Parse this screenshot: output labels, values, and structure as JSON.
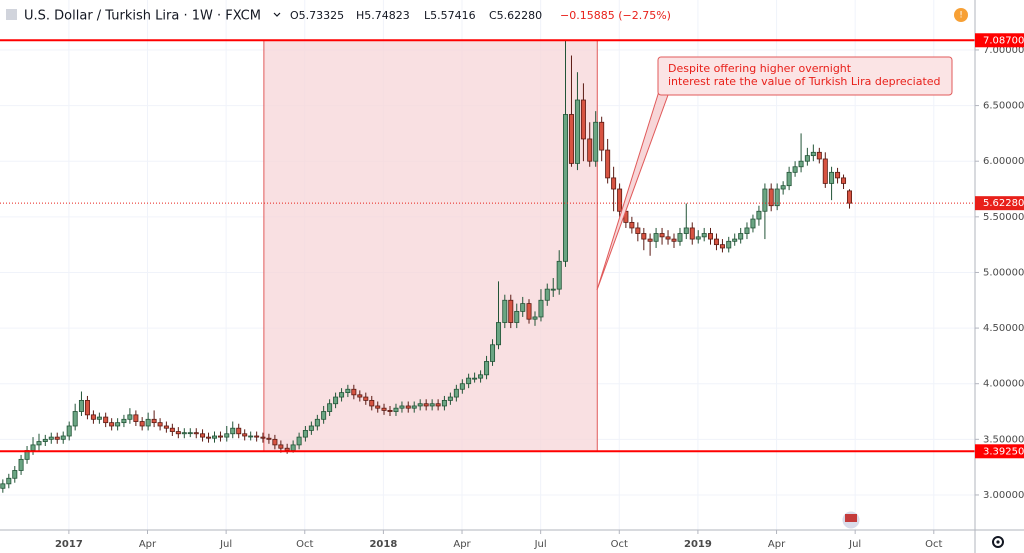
{
  "header": {
    "symbol": "U.S. Dollar / Turkish Lira · 1W · FXCM",
    "ohlc": [
      "O5.73325",
      "H5.74823",
      "L5.57416",
      "C5.62280"
    ],
    "change": "−0.15885 (−2.75%)"
  },
  "chart_data": {
    "type": "candlestick",
    "up_color": "#6ba583",
    "down_color": "#d75442",
    "xlim": [
      2016.781,
      2019.881
    ],
    "ylim": [
      2.685,
      7.449
    ],
    "grid": true,
    "xticks": [
      {
        "value": 2017,
        "label": "2017"
      },
      {
        "value": 2017.25,
        "label": "Apr"
      },
      {
        "value": 2017.5,
        "label": "Jul"
      },
      {
        "value": 2017.75,
        "label": "Oct"
      },
      {
        "value": 2018,
        "label": "2018"
      },
      {
        "value": 2018.25,
        "label": "Apr"
      },
      {
        "value": 2018.5,
        "label": "Jul"
      },
      {
        "value": 2018.75,
        "label": "Oct"
      },
      {
        "value": 2019,
        "label": "2019"
      },
      {
        "value": 2019.25,
        "label": "Apr"
      },
      {
        "value": 2019.5,
        "label": "Jul"
      },
      {
        "value": 2019.75,
        "label": "Oct"
      }
    ],
    "yticks": [
      {
        "value": 3,
        "label": "3.00000"
      },
      {
        "value": 3.5,
        "label": "3.50000"
      },
      {
        "value": 4,
        "label": "4.00000"
      },
      {
        "value": 4.5,
        "label": "4.50000"
      },
      {
        "value": 5,
        "label": "5.00000"
      },
      {
        "value": 5.5,
        "label": "5.50000"
      },
      {
        "value": 6,
        "label": "6.00000"
      },
      {
        "value": 6.5,
        "label": "6.50000"
      },
      {
        "value": 7,
        "label": "7.00000"
      }
    ],
    "hlines": [
      {
        "value": 7.087,
        "label": "7.08700",
        "color": "#ff0000"
      },
      {
        "value": 3.3925,
        "label": "3.39250",
        "color": "#ff0000"
      }
    ],
    "price_line": {
      "value": 5.6228,
      "label": "5.62280",
      "color": "#e8201a"
    },
    "region": {
      "x": [
        2017.62,
        2018.68
      ],
      "color": "#f7d6d8"
    },
    "annotation": [
      "Despite offering higher overnight",
      "interest rate the value of Turkish Lira depreciated"
    ],
    "x": [
      2016.79,
      2016.809,
      2016.828,
      2016.848,
      2016.867,
      2016.886,
      2016.905,
      2016.925,
      2016.944,
      2016.963,
      2016.982,
      2017.001,
      2017.02,
      2017.04,
      2017.059,
      2017.078,
      2017.097,
      2017.117,
      2017.136,
      2017.155,
      2017.175,
      2017.194,
      2017.213,
      2017.233,
      2017.252,
      2017.271,
      2017.29,
      2017.31,
      2017.329,
      2017.348,
      2017.367,
      2017.386,
      2017.405,
      2017.425,
      2017.444,
      2017.463,
      2017.482,
      2017.502,
      2017.521,
      2017.54,
      2017.559,
      2017.578,
      2017.597,
      2017.617,
      2017.636,
      2017.655,
      2017.674,
      2017.694,
      2017.713,
      2017.732,
      2017.752,
      2017.771,
      2017.79,
      2017.81,
      2017.829,
      2017.848,
      2017.867,
      2017.887,
      2017.906,
      2017.925,
      2017.944,
      2017.963,
      2017.982,
      2018.002,
      2018.021,
      2018.04,
      2018.059,
      2018.079,
      2018.098,
      2018.117,
      2018.136,
      2018.155,
      2018.174,
      2018.194,
      2018.213,
      2018.232,
      2018.251,
      2018.271,
      2018.29,
      2018.309,
      2018.328,
      2018.347,
      2018.366,
      2018.386,
      2018.405,
      2018.424,
      2018.443,
      2018.463,
      2018.482,
      2018.501,
      2018.521,
      2018.54,
      2018.559,
      2018.579,
      2018.598,
      2018.617,
      2018.636,
      2018.656,
      2018.675,
      2018.694,
      2018.713,
      2018.732,
      2018.751,
      2018.771,
      2018.79,
      2018.809,
      2018.828,
      2018.848,
      2018.867,
      2018.886,
      2018.905,
      2018.924,
      2018.943,
      2018.963,
      2018.982,
      2019.001,
      2019.02,
      2019.04,
      2019.059,
      2019.078,
      2019.098,
      2019.117,
      2019.136,
      2019.156,
      2019.175,
      2019.194,
      2019.213,
      2019.233,
      2019.252,
      2019.271,
      2019.29,
      2019.309,
      2019.328,
      2019.348,
      2019.367,
      2019.386,
      2019.405,
      2019.425,
      2019.444,
      2019.463,
      2019.482
    ],
    "open": [
      3.06,
      3.1,
      3.15,
      3.22,
      3.32,
      3.4,
      3.45,
      3.48,
      3.5,
      3.52,
      3.5,
      3.53,
      3.62,
      3.75,
      3.85,
      3.72,
      3.68,
      3.7,
      3.65,
      3.62,
      3.65,
      3.68,
      3.72,
      3.66,
      3.62,
      3.68,
      3.65,
      3.62,
      3.6,
      3.57,
      3.55,
      3.56,
      3.56,
      3.55,
      3.52,
      3.51,
      3.53,
      3.52,
      3.55,
      3.6,
      3.55,
      3.53,
      3.53,
      3.52,
      3.51,
      3.5,
      3.45,
      3.42,
      3.4,
      3.45,
      3.52,
      3.58,
      3.62,
      3.68,
      3.75,
      3.82,
      3.88,
      3.92,
      3.95,
      3.9,
      3.88,
      3.85,
      3.8,
      3.78,
      3.76,
      3.75,
      3.78,
      3.8,
      3.78,
      3.8,
      3.82,
      3.8,
      3.82,
      3.8,
      3.85,
      3.88,
      3.95,
      4.0,
      4.05,
      4.05,
      4.08,
      4.2,
      4.35,
      4.55,
      4.75,
      4.55,
      4.65,
      4.72,
      4.58,
      4.6,
      4.75,
      4.85,
      4.85,
      5.1,
      6.42,
      5.98,
      6.55,
      6.2,
      6.0,
      6.35,
      6.1,
      5.85,
      5.75,
      5.55,
      5.45,
      5.4,
      5.35,
      5.3,
      5.28,
      5.35,
      5.32,
      5.3,
      5.28,
      5.35,
      5.4,
      5.3,
      5.32,
      5.35,
      5.3,
      5.25,
      5.22,
      5.28,
      5.3,
      5.35,
      5.4,
      5.48,
      5.55,
      5.75,
      5.6,
      5.75,
      5.78,
      5.9,
      5.95,
      6.0,
      6.05,
      6.08,
      6.02,
      5.8,
      5.9,
      5.85,
      5.73325
    ],
    "high": [
      3.14,
      3.19,
      3.26,
      3.36,
      3.44,
      3.52,
      3.55,
      3.54,
      3.56,
      3.56,
      3.57,
      3.66,
      3.82,
      3.93,
      3.89,
      3.76,
      3.74,
      3.74,
      3.69,
      3.69,
      3.72,
      3.78,
      3.76,
      3.7,
      3.74,
      3.76,
      3.69,
      3.66,
      3.64,
      3.61,
      3.6,
      3.6,
      3.6,
      3.59,
      3.56,
      3.57,
      3.57,
      3.62,
      3.66,
      3.64,
      3.59,
      3.57,
      3.57,
      3.56,
      3.55,
      3.54,
      3.49,
      3.46,
      3.49,
      3.56,
      3.62,
      3.66,
      3.72,
      3.8,
      3.86,
      3.92,
      3.96,
      3.99,
      3.99,
      3.94,
      3.92,
      3.89,
      3.84,
      3.82,
      3.8,
      3.82,
      3.84,
      3.84,
      3.84,
      3.86,
      3.86,
      3.86,
      3.86,
      3.89,
      3.92,
      3.99,
      4.04,
      4.09,
      4.1,
      4.12,
      4.25,
      4.4,
      4.92,
      4.8,
      4.8,
      4.72,
      4.78,
      4.76,
      4.65,
      4.85,
      4.9,
      4.95,
      5.2,
      7.08,
      6.95,
      6.8,
      6.7,
      6.35,
      6.45,
      6.4,
      6.2,
      5.95,
      5.8,
      5.6,
      5.5,
      5.45,
      5.4,
      5.35,
      5.4,
      5.4,
      5.38,
      5.35,
      5.4,
      5.62,
      5.45,
      5.38,
      5.4,
      5.4,
      5.35,
      5.3,
      5.32,
      5.35,
      5.4,
      5.45,
      5.52,
      5.6,
      5.8,
      5.8,
      5.8,
      5.82,
      5.95,
      6.0,
      6.25,
      6.12,
      6.15,
      6.12,
      6.08,
      5.95,
      5.94,
      5.88,
      5.74823
    ],
    "low": [
      3.02,
      3.06,
      3.11,
      3.18,
      3.28,
      3.36,
      3.4,
      3.44,
      3.46,
      3.46,
      3.46,
      3.49,
      3.58,
      3.71,
      3.68,
      3.64,
      3.64,
      3.61,
      3.58,
      3.58,
      3.61,
      3.64,
      3.62,
      3.58,
      3.58,
      3.61,
      3.58,
      3.56,
      3.53,
      3.51,
      3.51,
      3.52,
      3.51,
      3.48,
      3.47,
      3.47,
      3.48,
      3.48,
      3.51,
      3.51,
      3.49,
      3.49,
      3.48,
      3.47,
      3.46,
      3.41,
      3.38,
      3.37,
      3.38,
      3.41,
      3.48,
      3.54,
      3.58,
      3.64,
      3.71,
      3.78,
      3.84,
      3.88,
      3.86,
      3.84,
      3.81,
      3.76,
      3.74,
      3.72,
      3.71,
      3.71,
      3.74,
      3.74,
      3.74,
      3.76,
      3.76,
      3.76,
      3.76,
      3.76,
      3.81,
      3.84,
      3.91,
      3.96,
      4.01,
      4.01,
      4.04,
      4.16,
      4.31,
      4.5,
      4.5,
      4.5,
      4.6,
      4.54,
      4.52,
      4.56,
      4.7,
      4.78,
      4.8,
      5.05,
      5.95,
      5.92,
      6.0,
      5.95,
      5.95,
      6.0,
      5.8,
      5.55,
      5.5,
      5.4,
      5.35,
      5.28,
      5.2,
      5.15,
      5.22,
      5.25,
      5.25,
      5.22,
      5.24,
      5.3,
      5.25,
      5.26,
      5.28,
      5.25,
      5.2,
      5.18,
      5.18,
      5.24,
      5.26,
      5.3,
      5.36,
      5.42,
      5.3,
      5.55,
      5.56,
      5.7,
      5.74,
      5.86,
      5.9,
      5.96,
      6.0,
      5.98,
      5.76,
      5.65,
      5.8,
      5.75,
      5.57416
    ],
    "close": [
      3.1,
      3.15,
      3.22,
      3.32,
      3.4,
      3.45,
      3.48,
      3.5,
      3.52,
      3.5,
      3.53,
      3.62,
      3.75,
      3.85,
      3.72,
      3.68,
      3.7,
      3.65,
      3.62,
      3.65,
      3.68,
      3.72,
      3.66,
      3.62,
      3.68,
      3.65,
      3.62,
      3.6,
      3.57,
      3.55,
      3.56,
      3.56,
      3.55,
      3.52,
      3.51,
      3.53,
      3.52,
      3.55,
      3.6,
      3.55,
      3.53,
      3.53,
      3.52,
      3.51,
      3.5,
      3.45,
      3.42,
      3.4,
      3.45,
      3.52,
      3.58,
      3.62,
      3.68,
      3.75,
      3.82,
      3.88,
      3.92,
      3.95,
      3.9,
      3.88,
      3.85,
      3.8,
      3.78,
      3.76,
      3.75,
      3.78,
      3.8,
      3.78,
      3.8,
      3.82,
      3.8,
      3.82,
      3.8,
      3.85,
      3.88,
      3.95,
      4.0,
      4.05,
      4.05,
      4.08,
      4.2,
      4.35,
      4.55,
      4.75,
      4.55,
      4.65,
      4.72,
      4.58,
      4.6,
      4.75,
      4.85,
      4.85,
      5.1,
      6.42,
      5.98,
      6.55,
      6.2,
      6.0,
      6.35,
      6.1,
      5.85,
      5.75,
      5.55,
      5.45,
      5.4,
      5.35,
      5.3,
      5.28,
      5.35,
      5.32,
      5.3,
      5.28,
      5.35,
      5.4,
      5.3,
      5.32,
      5.35,
      5.3,
      5.25,
      5.22,
      5.28,
      5.3,
      5.35,
      5.4,
      5.48,
      5.55,
      5.75,
      5.6,
      5.75,
      5.78,
      5.9,
      5.95,
      6.0,
      6.05,
      6.08,
      6.02,
      5.8,
      5.9,
      5.85,
      5.8,
      5.6228
    ]
  }
}
